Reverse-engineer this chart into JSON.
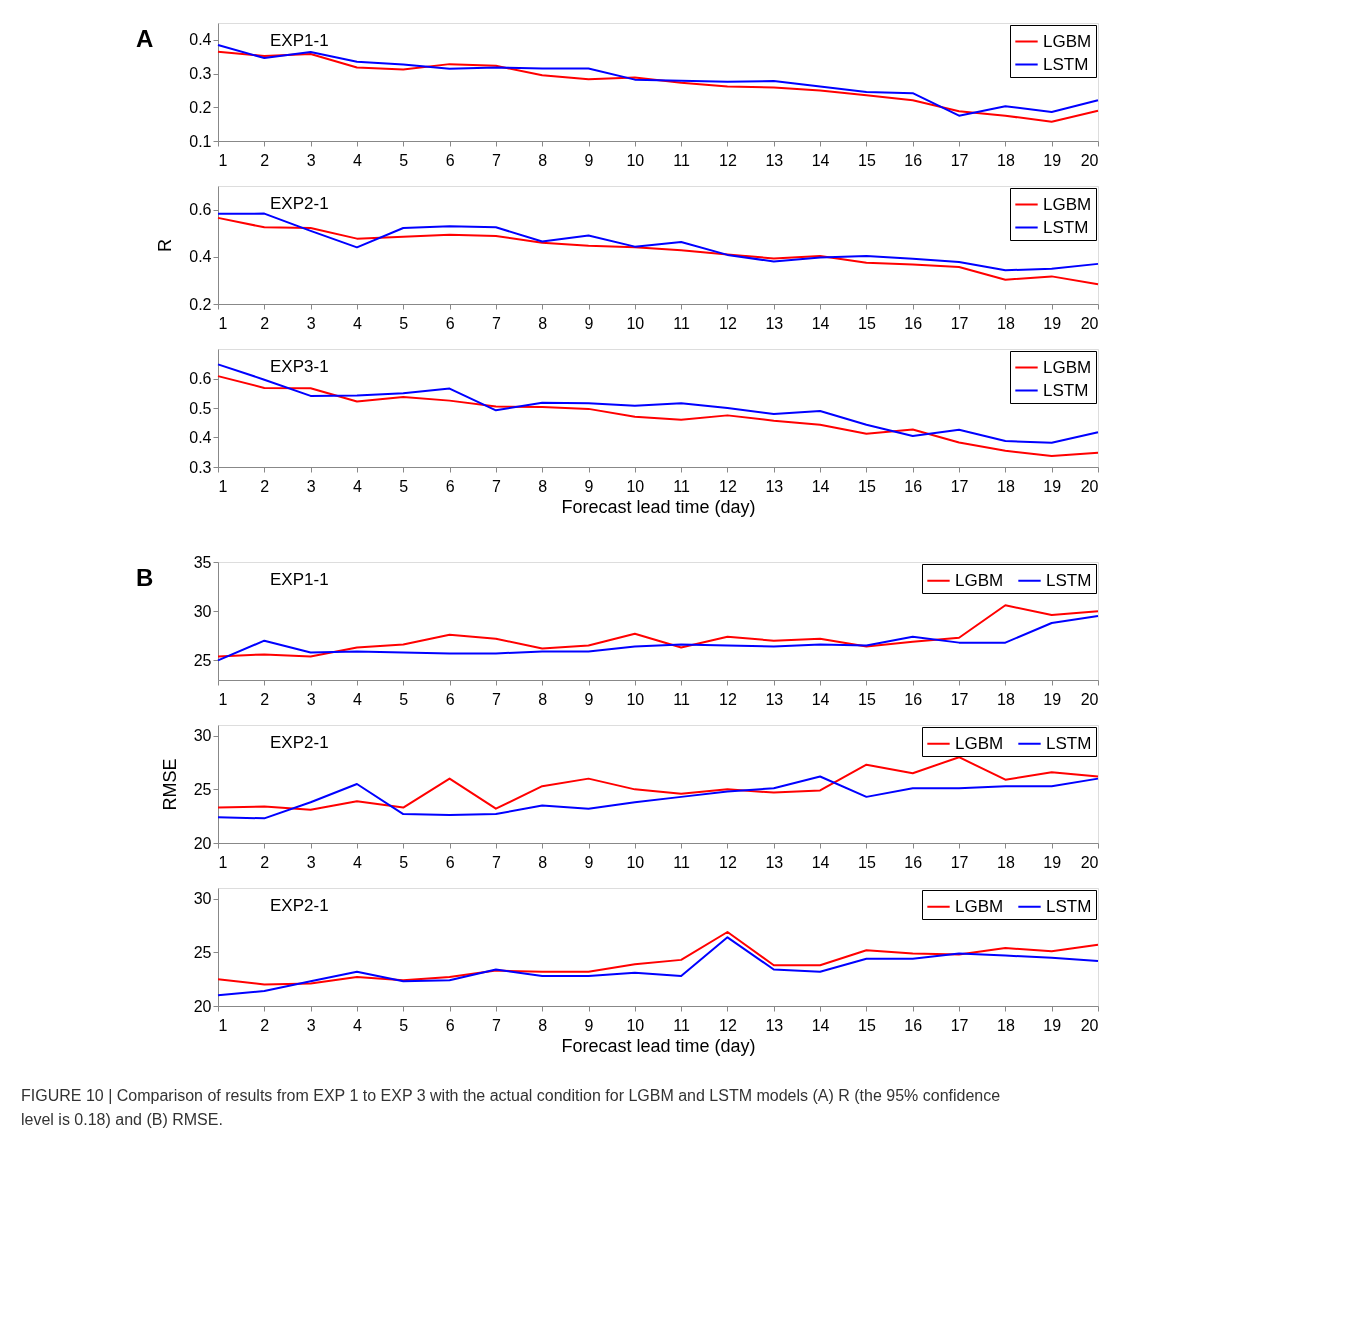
{
  "chart_data": [
    {
      "type": "line",
      "title": "EXP1-1",
      "annotations": [
        "A"
      ],
      "x": [
        1,
        2,
        3,
        4,
        5,
        6,
        7,
        8,
        9,
        10,
        11,
        12,
        13,
        14,
        15,
        16,
        17,
        18,
        19,
        20
      ],
      "xlim": [
        1,
        20
      ],
      "xticks": [
        1,
        2,
        3,
        4,
        5,
        6,
        7,
        8,
        9,
        10,
        11,
        12,
        13,
        14,
        15,
        16,
        17,
        18,
        19,
        20
      ],
      "ylim": [
        0.1,
        0.45
      ],
      "yticks": [
        0.1,
        0.2,
        0.3,
        0.4
      ],
      "grid": false,
      "legend": "top right",
      "series": [
        {
          "name": "LGBM",
          "color": "#ff0000",
          "values": [
            0.365,
            0.352,
            0.358,
            0.318,
            0.312,
            0.328,
            0.323,
            0.295,
            0.283,
            0.288,
            0.273,
            0.262,
            0.259,
            0.25,
            0.236,
            0.221,
            0.188,
            0.175,
            0.157,
            0.19
          ]
        },
        {
          "name": "LSTM",
          "color": "#0000ff",
          "values": [
            0.385,
            0.346,
            0.364,
            0.335,
            0.327,
            0.314,
            0.318,
            0.315,
            0.315,
            0.282,
            0.279,
            0.276,
            0.278,
            0.262,
            0.245,
            0.242,
            0.175,
            0.203,
            0.186,
            0.221
          ]
        }
      ]
    },
    {
      "type": "line",
      "title": "EXP2-1",
      "ylabel": "R",
      "x": [
        1,
        2,
        3,
        4,
        5,
        6,
        7,
        8,
        9,
        10,
        11,
        12,
        13,
        14,
        15,
        16,
        17,
        18,
        19,
        20
      ],
      "xlim": [
        1,
        20
      ],
      "xticks": [
        1,
        2,
        3,
        4,
        5,
        6,
        7,
        8,
        9,
        10,
        11,
        12,
        13,
        14,
        15,
        16,
        17,
        18,
        19,
        20
      ],
      "ylim": [
        0.2,
        0.7
      ],
      "yticks": [
        0.2,
        0.4,
        0.6
      ],
      "grid": false,
      "legend": "top right",
      "series": [
        {
          "name": "LGBM",
          "color": "#ff0000",
          "values": [
            0.565,
            0.525,
            0.522,
            0.477,
            0.485,
            0.493,
            0.488,
            0.46,
            0.447,
            0.44,
            0.428,
            0.41,
            0.393,
            0.403,
            0.375,
            0.367,
            0.357,
            0.303,
            0.317,
            0.284
          ]
        },
        {
          "name": "LSTM",
          "color": "#0000ff",
          "values": [
            0.582,
            0.583,
            0.51,
            0.44,
            0.522,
            0.529,
            0.525,
            0.465,
            0.49,
            0.443,
            0.463,
            0.408,
            0.38,
            0.397,
            0.403,
            0.392,
            0.378,
            0.343,
            0.349,
            0.37
          ]
        }
      ]
    },
    {
      "type": "line",
      "title": "EXP3-1",
      "xlabel": "Forecast lead time (day)",
      "x": [
        1,
        2,
        3,
        4,
        5,
        6,
        7,
        8,
        9,
        10,
        11,
        12,
        13,
        14,
        15,
        16,
        17,
        18,
        19,
        20
      ],
      "xlim": [
        1,
        20
      ],
      "xticks": [
        1,
        2,
        3,
        4,
        5,
        6,
        7,
        8,
        9,
        10,
        11,
        12,
        13,
        14,
        15,
        16,
        17,
        18,
        19,
        20
      ],
      "ylim": [
        0.3,
        0.7
      ],
      "yticks": [
        0.3,
        0.4,
        0.5,
        0.6
      ],
      "grid": false,
      "legend": "top right",
      "series": [
        {
          "name": "LGBM",
          "color": "#ff0000",
          "values": [
            0.608,
            0.568,
            0.567,
            0.522,
            0.537,
            0.525,
            0.505,
            0.503,
            0.497,
            0.47,
            0.46,
            0.475,
            0.457,
            0.443,
            0.413,
            0.427,
            0.383,
            0.355,
            0.337,
            0.348
          ]
        },
        {
          "name": "LSTM",
          "color": "#0000ff",
          "values": [
            0.648,
            0.596,
            0.541,
            0.542,
            0.55,
            0.566,
            0.492,
            0.518,
            0.516,
            0.508,
            0.516,
            0.5,
            0.48,
            0.49,
            0.443,
            0.405,
            0.426,
            0.388,
            0.382,
            0.418
          ]
        }
      ]
    },
    {
      "type": "line",
      "title": "EXP1-1",
      "annotations": [
        "B"
      ],
      "x": [
        1,
        2,
        3,
        4,
        5,
        6,
        7,
        8,
        9,
        10,
        11,
        12,
        13,
        14,
        15,
        16,
        17,
        18,
        19,
        20
      ],
      "xlim": [
        1,
        20
      ],
      "xticks": [
        1,
        2,
        3,
        4,
        5,
        6,
        7,
        8,
        9,
        10,
        11,
        12,
        13,
        14,
        15,
        16,
        17,
        18,
        19,
        20
      ],
      "ylim": [
        23,
        35
      ],
      "yticks": [
        25,
        30,
        35
      ],
      "grid": false,
      "legend": "top right",
      "series": [
        {
          "name": "LGBM",
          "color": "#ff0000",
          "values": [
            25.4,
            25.6,
            25.4,
            26.3,
            26.6,
            27.6,
            27.2,
            26.2,
            26.5,
            27.7,
            26.3,
            27.4,
            27.0,
            27.2,
            26.4,
            26.9,
            27.3,
            30.6,
            29.6,
            30.0
          ]
        },
        {
          "name": "LSTM",
          "color": "#0000ff",
          "values": [
            25.0,
            27.0,
            25.8,
            25.9,
            25.8,
            25.7,
            25.7,
            25.9,
            25.9,
            26.4,
            26.6,
            26.5,
            26.4,
            26.6,
            26.5,
            27.4,
            26.8,
            26.8,
            28.8,
            29.5
          ]
        }
      ]
    },
    {
      "type": "line",
      "title": "EXP2-1",
      "ylabel": "RMSE",
      "x": [
        1,
        2,
        3,
        4,
        5,
        6,
        7,
        8,
        9,
        10,
        11,
        12,
        13,
        14,
        15,
        16,
        17,
        18,
        19,
        20
      ],
      "xlim": [
        1,
        20
      ],
      "xticks": [
        1,
        2,
        3,
        4,
        5,
        6,
        7,
        8,
        9,
        10,
        11,
        12,
        13,
        14,
        15,
        16,
        17,
        18,
        19,
        20
      ],
      "ylim": [
        20,
        31
      ],
      "yticks": [
        20,
        25,
        30
      ],
      "grid": false,
      "legend": "top right",
      "series": [
        {
          "name": "LGBM",
          "color": "#ff0000",
          "values": [
            23.3,
            23.4,
            23.1,
            23.9,
            23.3,
            26.0,
            23.2,
            25.3,
            26.0,
            25.0,
            24.6,
            25.0,
            24.7,
            24.9,
            27.3,
            26.5,
            28.0,
            25.9,
            26.6,
            26.2
          ]
        },
        {
          "name": "LSTM",
          "color": "#0000ff",
          "values": [
            22.4,
            22.3,
            23.8,
            25.5,
            22.7,
            22.6,
            22.7,
            23.5,
            23.2,
            23.8,
            24.3,
            24.8,
            25.1,
            26.2,
            24.3,
            25.1,
            25.1,
            25.3,
            25.3,
            26.0
          ]
        }
      ]
    },
    {
      "type": "line",
      "title": "EXP2-1",
      "xlabel": "Forecast lead time (day)",
      "annotations": [
        "FIGURE 10 | Comparison of results from EXP 1 to EXP 3 with the actual condition for LGBM and LSTM models (A) R (the 95% confidence level is 0.18) and (B) RMSE."
      ],
      "x": [
        1,
        2,
        3,
        4,
        5,
        6,
        7,
        8,
        9,
        10,
        11,
        12,
        13,
        14,
        15,
        16,
        17,
        18,
        19,
        20
      ],
      "xlim": [
        1,
        20
      ],
      "xticks": [
        1,
        2,
        3,
        4,
        5,
        6,
        7,
        8,
        9,
        10,
        11,
        12,
        13,
        14,
        15,
        16,
        17,
        18,
        19,
        20
      ],
      "ylim": [
        20,
        31
      ],
      "yticks": [
        20,
        25,
        30
      ],
      "grid": false,
      "legend": "top right",
      "series": [
        {
          "name": "LGBM",
          "color": "#ff0000",
          "values": [
            22.5,
            22.0,
            22.1,
            22.7,
            22.4,
            22.7,
            23.3,
            23.2,
            23.2,
            23.9,
            24.3,
            26.9,
            23.8,
            23.8,
            25.2,
            24.9,
            24.8,
            25.4,
            25.1,
            25.7
          ]
        },
        {
          "name": "LSTM",
          "color": "#0000ff",
          "values": [
            21.0,
            21.4,
            22.3,
            23.2,
            22.3,
            22.4,
            23.4,
            22.8,
            22.8,
            23.1,
            22.8,
            26.4,
            23.4,
            23.2,
            24.4,
            24.4,
            24.9,
            24.7,
            24.5,
            24.2
          ]
        }
      ]
    }
  ]
}
